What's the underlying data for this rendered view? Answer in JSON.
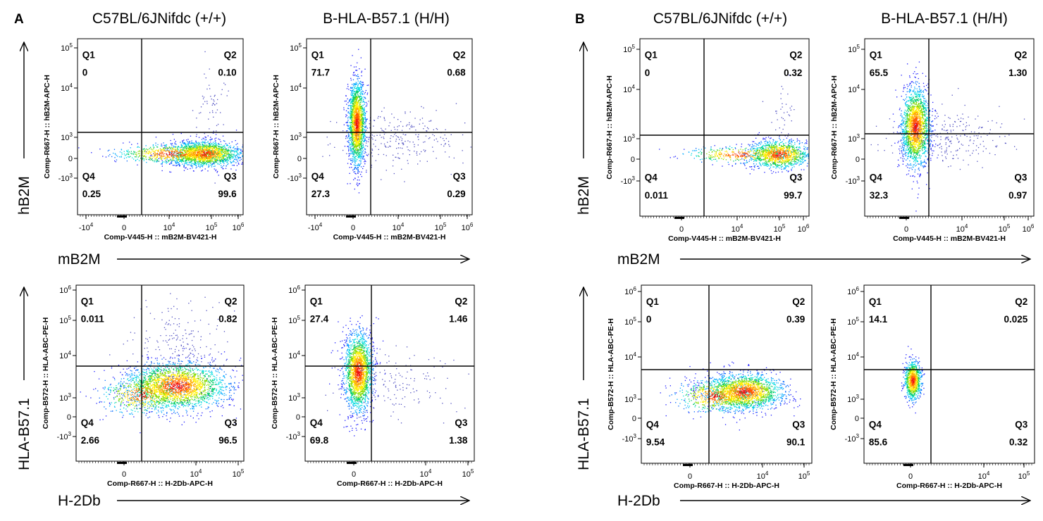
{
  "panels": [
    {
      "letter": "A",
      "columns": [
        "C57BL/6JNifdc (+/+)",
        "B-HLA-B57.1 (H/H)"
      ]
    },
    {
      "letter": "B",
      "columns": [
        "C57BL/6JNifdc (+/+)",
        "B-HLA-B57.1 (H/H)"
      ]
    }
  ],
  "row_labels": {
    "top": {
      "y": "hB2M",
      "x": "mB2M"
    },
    "bottom": {
      "y": "HLA-B57.1",
      "x": "H-2Db"
    }
  },
  "chart_data": [
    {
      "type": "scatter",
      "panel": "A",
      "group": "C57BL/6JNifdc (+/+)",
      "xlabel": "Comp-V445-H :: mB2M-BV421-H",
      "ylabel": "Comp-R667-H :: hB2M-APC-H",
      "x_ticks": [
        "-10^4",
        "0",
        "10^4",
        "10^5",
        "10^6"
      ],
      "y_ticks": [
        "-10^3",
        "0",
        "10^3",
        "10^4",
        "10^5"
      ],
      "quadrants": {
        "Q1": "0",
        "Q2": "0.10",
        "Q3": "99.6",
        "Q4": "0.25"
      }
    },
    {
      "type": "scatter",
      "panel": "A",
      "group": "B-HLA-B57.1 (H/H)",
      "xlabel": "Comp-V445-H :: mB2M-BV421-H",
      "ylabel": "Comp-R667-H :: hB2M-APC-H",
      "x_ticks": [
        "-10^4",
        "0",
        "10^4",
        "10^5",
        "10^6"
      ],
      "y_ticks": [
        "-10^3",
        "0",
        "10^3",
        "10^4",
        "10^5"
      ],
      "quadrants": {
        "Q1": "71.7",
        "Q2": "0.68",
        "Q3": "0.29",
        "Q4": "27.3"
      }
    },
    {
      "type": "scatter",
      "panel": "B",
      "group": "C57BL/6JNifdc (+/+)",
      "xlabel": "Comp-V445-H :: mB2M-BV421-H",
      "ylabel": "Comp-R667-H :: hB2M-APC-H",
      "x_ticks": [
        "0",
        "10^4",
        "10^5",
        "10^6"
      ],
      "y_ticks": [
        "-10^3",
        "0",
        "10^3",
        "10^4",
        "10^5"
      ],
      "quadrants": {
        "Q1": "0",
        "Q2": "0.32",
        "Q3": "99.7",
        "Q4": "0.011"
      }
    },
    {
      "type": "scatter",
      "panel": "B",
      "group": "B-HLA-B57.1 (H/H)",
      "xlabel": "Comp-V445-H :: mB2M-BV421-H",
      "ylabel": "Comp-R667-H :: hB2M-APC-H",
      "x_ticks": [
        "0",
        "10^4",
        "10^5",
        "10^6"
      ],
      "y_ticks": [
        "-10^3",
        "0",
        "10^3",
        "10^4",
        "10^5"
      ],
      "quadrants": {
        "Q1": "65.5",
        "Q2": "1.30",
        "Q3": "0.97",
        "Q4": "32.3"
      }
    },
    {
      "type": "scatter",
      "panel": "A",
      "group": "C57BL/6JNifdc (+/+)",
      "xlabel": "Comp-R667-H :: H-2Db-APC-H",
      "ylabel": "Comp-B572-H :: HLA-ABC-PE-H",
      "x_ticks": [
        "0",
        "10^4",
        "10^5"
      ],
      "y_ticks": [
        "-10^3",
        "0",
        "10^3",
        "10^4",
        "10^5",
        "10^6"
      ],
      "quadrants": {
        "Q1": "0.011",
        "Q2": "0.82",
        "Q3": "96.5",
        "Q4": "2.66"
      }
    },
    {
      "type": "scatter",
      "panel": "A",
      "group": "B-HLA-B57.1 (H/H)",
      "xlabel": "Comp-R667-H :: H-2Db-APC-H",
      "ylabel": "Comp-B572-H :: HLA-ABC-PE-H",
      "x_ticks": [
        "0",
        "10^4",
        "10^5"
      ],
      "y_ticks": [
        "-10^3",
        "0",
        "10^3",
        "10^4",
        "10^5",
        "10^6"
      ],
      "quadrants": {
        "Q1": "27.4",
        "Q2": "1.46",
        "Q3": "1.38",
        "Q4": "69.8"
      }
    },
    {
      "type": "scatter",
      "panel": "B",
      "group": "C57BL/6JNifdc (+/+)",
      "xlabel": "Comp-R667-H :: H-2Db-APC-H",
      "ylabel": "Comp-B572-H :: HLA-ABC-PE-H",
      "x_ticks": [
        "0",
        "10^4",
        "10^5"
      ],
      "y_ticks": [
        "-10^3",
        "0",
        "10^3",
        "10^4",
        "10^5",
        "10^6"
      ],
      "quadrants": {
        "Q1": "0",
        "Q2": "0.39",
        "Q3": "90.1",
        "Q4": "9.54"
      }
    },
    {
      "type": "scatter",
      "panel": "B",
      "group": "B-HLA-B57.1 (H/H)",
      "xlabel": "Comp-R667-H :: H-2Db-APC-H",
      "ylabel": "Comp-B572-H :: HLA-ABC-PE-H",
      "x_ticks": [
        "0",
        "10^4",
        "10^5"
      ],
      "y_ticks": [
        "-10^3",
        "0",
        "10^3",
        "10^4",
        "10^5",
        "10^6"
      ],
      "quadrants": {
        "Q1": "14.1",
        "Q2": "0.025",
        "Q3": "0.32",
        "Q4": "85.6"
      }
    }
  ],
  "colors": {
    "low": "#1a1aff",
    "mid": "#00cc66",
    "high": "#ffee00",
    "peak": "#ee1111",
    "sparse": "#5050c0",
    "gate": "#000000"
  }
}
